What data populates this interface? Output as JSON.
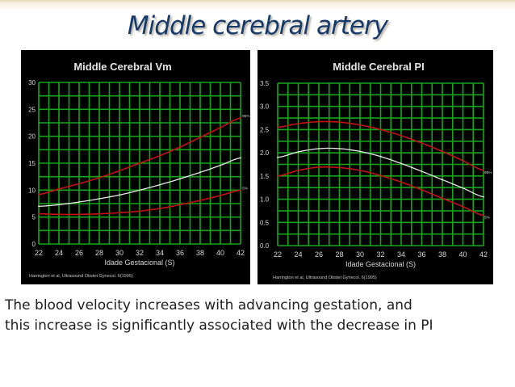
{
  "slide": {
    "title": "Middle cerebral artery",
    "caption_lines": [
      "The blood velocity increases with advancing gestation, and",
      "this increase is significantly associated with the decrease in PI"
    ]
  },
  "colors": {
    "title": "#163a6a",
    "grid": "#16a51a",
    "percentile": "#c41212",
    "median": "#e8e8e8",
    "panel": "#000000"
  },
  "chart_data": [
    {
      "id": "vm",
      "type": "line",
      "title": "Middle Cerebral Vm",
      "xlabel": "Idade Gestacional (S)",
      "ylabel": "",
      "x": [
        22,
        24,
        26,
        28,
        30,
        32,
        34,
        36,
        38,
        40,
        42
      ],
      "xlim": [
        22,
        42
      ],
      "ylim": [
        0,
        30
      ],
      "x_ticks": [
        "22",
        "24",
        "26",
        "28",
        "30",
        "32",
        "34",
        "36",
        "38",
        "40",
        "42"
      ],
      "y_ticks": [
        "0",
        "5",
        "10",
        "15",
        "20",
        "25",
        "30"
      ],
      "grid": true,
      "source": "Harrington et al, Ultrasound Obstet Gynecol. 6(1995)",
      "series": [
        {
          "name": "95%",
          "label": "95%",
          "role": "percentile",
          "values": [
            9.2,
            10.2,
            11.2,
            12.3,
            13.6,
            15.0,
            16.4,
            18.0,
            19.8,
            21.6,
            23.4
          ]
        },
        {
          "name": "50%",
          "label": "",
          "role": "median",
          "values": [
            7.0,
            7.3,
            7.8,
            8.4,
            9.1,
            10.0,
            11.0,
            12.1,
            13.3,
            14.6,
            16.0
          ]
        },
        {
          "name": "5%",
          "label": "5%",
          "role": "percentile",
          "values": [
            5.6,
            5.5,
            5.5,
            5.6,
            5.8,
            6.1,
            6.6,
            7.3,
            8.1,
            9.0,
            10.0
          ]
        }
      ]
    },
    {
      "id": "pi",
      "type": "line",
      "title": "Middle Cerebral PI",
      "xlabel": "Idade Gestacional (S)",
      "ylabel": "",
      "x": [
        22,
        24,
        26,
        28,
        30,
        32,
        34,
        36,
        38,
        40,
        42
      ],
      "xlim": [
        22,
        42
      ],
      "ylim": [
        0,
        3.5
      ],
      "x_ticks": [
        "22",
        "24",
        "26",
        "28",
        "30",
        "32",
        "34",
        "36",
        "38",
        "40",
        "42"
      ],
      "y_ticks": [
        "0.0",
        "0.5",
        "1.0",
        "1.5",
        "2.0",
        "2.5",
        "3.0",
        "3.5"
      ],
      "grid": true,
      "source": "Harrington et al, Ultrasound Obstet Gynecol. 6(1995)",
      "series": [
        {
          "name": "95%",
          "label": "95%",
          "role": "percentile",
          "values": [
            2.55,
            2.63,
            2.67,
            2.66,
            2.6,
            2.5,
            2.37,
            2.21,
            2.03,
            1.83,
            1.62
          ]
        },
        {
          "name": "50%",
          "label": "",
          "role": "median",
          "values": [
            1.9,
            2.02,
            2.09,
            2.09,
            2.03,
            1.92,
            1.77,
            1.6,
            1.42,
            1.24,
            1.05
          ]
        },
        {
          "name": "5%",
          "label": "5%",
          "role": "percentile",
          "values": [
            1.5,
            1.62,
            1.69,
            1.68,
            1.62,
            1.51,
            1.37,
            1.2,
            1.02,
            0.84,
            0.65
          ]
        }
      ]
    }
  ]
}
